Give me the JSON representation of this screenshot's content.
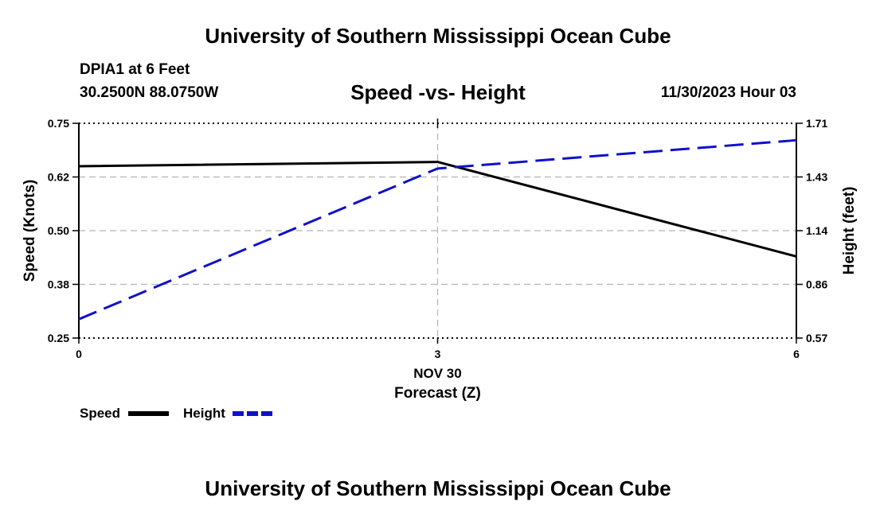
{
  "header": {
    "title": "University of Southern Mississippi Ocean Cube",
    "station": "DPIA1 at 6 Feet",
    "coords": "30.2500N  88.0750W",
    "chart_title": "Speed -vs- Height",
    "datetime": "11/30/2023 Hour 03"
  },
  "footer": {
    "title": "University of Southern Mississippi Ocean Cube"
  },
  "chart_data": {
    "type": "line",
    "title": "Speed -vs- Height",
    "x": [
      0,
      3,
      6
    ],
    "x_tick_labels": [
      "0",
      "3",
      "6"
    ],
    "xlim": [
      0,
      6
    ],
    "x_date_label": "NOV 30",
    "xlabel": "Forecast (Z)",
    "ylabel_left": "Speed (Knots)",
    "ylabel_right": "Height (feet)",
    "ylim_left": [
      0.25,
      0.75
    ],
    "ylim_right": [
      0.57,
      1.71
    ],
    "y_left_ticks": [
      "0.75",
      "0.62",
      "0.50",
      "0.38",
      "0.25"
    ],
    "y_right_ticks": [
      "1.71",
      "1.43",
      "1.14",
      "0.86",
      "0.57"
    ],
    "grid": true,
    "legend_position": "bottom-left",
    "series": [
      {
        "name": "Speed",
        "axis": "left",
        "values": [
          0.65,
          0.66,
          0.44
        ],
        "color": "#000000",
        "style": "solid"
      },
      {
        "name": "Height",
        "axis": "right",
        "values": [
          0.67,
          1.47,
          1.62
        ],
        "color": "#1010cc",
        "style": "dashed"
      }
    ]
  }
}
